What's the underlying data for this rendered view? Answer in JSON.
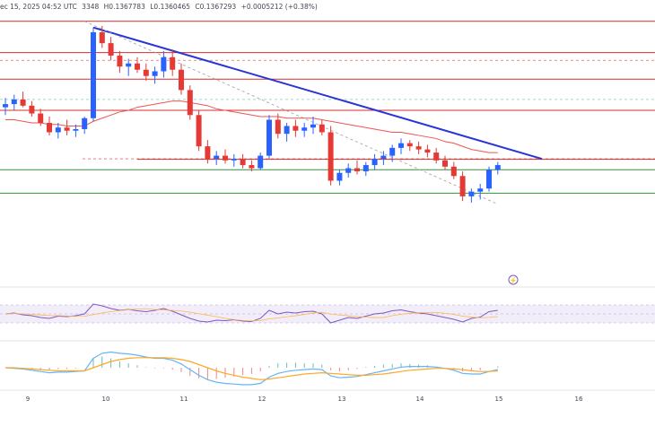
{
  "header": {
    "date_text": "ec 15, 2025 04:52 UTC",
    "open_text": "3348",
    "high_text": "H0.1367783",
    "low_text": "L0.1360465",
    "close_text": "C0.1367293",
    "change_text": "+0.0005212 (+0.38%)"
  },
  "colors": {
    "up": "#2962ff",
    "down": "#e53935",
    "trend": "#2935d6",
    "resistance": "#d32f2f",
    "support": "#388e3c",
    "ma": "#ef5350",
    "rsi": "#7e57c2",
    "macd": "#64b5f6",
    "signal": "#ffa726"
  },
  "chart_data": {
    "type": "candlestick",
    "x_ticks": [
      "9",
      "10",
      "11",
      "12",
      "13",
      "14",
      "15",
      "16"
    ],
    "price_scale": {
      "top": 0.146,
      "bottom": 0.1285
    },
    "candles": [
      [
        0.14,
        0.1406,
        0.1395,
        0.1402
      ],
      [
        0.1402,
        0.1408,
        0.1398,
        0.1405
      ],
      [
        0.1405,
        0.141,
        0.14,
        0.1401
      ],
      [
        0.1401,
        0.1404,
        0.1394,
        0.1396
      ],
      [
        0.1396,
        0.1399,
        0.1388,
        0.139
      ],
      [
        0.139,
        0.1394,
        0.1382,
        0.1384
      ],
      [
        0.1384,
        0.139,
        0.138,
        0.1387
      ],
      [
        0.1387,
        0.1392,
        0.1382,
        0.1385
      ],
      [
        0.1385,
        0.1389,
        0.1381,
        0.1386
      ],
      [
        0.1386,
        0.1394,
        0.1383,
        0.1393
      ],
      [
        0.1393,
        0.1451,
        0.1391,
        0.1448
      ],
      [
        0.1448,
        0.1452,
        0.1438,
        0.1441
      ],
      [
        0.1441,
        0.1445,
        0.143,
        0.1433
      ],
      [
        0.1433,
        0.1436,
        0.1422,
        0.1426
      ],
      [
        0.1426,
        0.1431,
        0.142,
        0.1428
      ],
      [
        0.1428,
        0.1432,
        0.1422,
        0.1424
      ],
      [
        0.1424,
        0.1428,
        0.1417,
        0.142
      ],
      [
        0.142,
        0.1426,
        0.1415,
        0.1423
      ],
      [
        0.1423,
        0.1436,
        0.1419,
        0.1432
      ],
      [
        0.1432,
        0.1437,
        0.142,
        0.1424
      ],
      [
        0.1424,
        0.1428,
        0.1408,
        0.1411
      ],
      [
        0.1411,
        0.1414,
        0.1392,
        0.1395
      ],
      [
        0.1395,
        0.1398,
        0.1372,
        0.1375
      ],
      [
        0.1375,
        0.1379,
        0.1364,
        0.1367
      ],
      [
        0.1367,
        0.1372,
        0.1363,
        0.1369
      ],
      [
        0.1369,
        0.1373,
        0.1364,
        0.1366
      ],
      [
        0.1366,
        0.137,
        0.1362,
        0.1367
      ],
      [
        0.1367,
        0.137,
        0.1361,
        0.1363
      ],
      [
        0.1363,
        0.1366,
        0.1359,
        0.1361
      ],
      [
        0.1361,
        0.1371,
        0.136,
        0.1369
      ],
      [
        0.1369,
        0.1395,
        0.1367,
        0.1392
      ],
      [
        0.1392,
        0.1396,
        0.138,
        0.1383
      ],
      [
        0.1383,
        0.139,
        0.1378,
        0.1388
      ],
      [
        0.1388,
        0.1392,
        0.1381,
        0.1385
      ],
      [
        0.1385,
        0.139,
        0.1381,
        0.1387
      ],
      [
        0.1387,
        0.1394,
        0.1383,
        0.1389
      ],
      [
        0.1389,
        0.1392,
        0.1382,
        0.1384
      ],
      [
        0.1384,
        0.1388,
        0.135,
        0.1353
      ],
      [
        0.1353,
        0.136,
        0.135,
        0.1358
      ],
      [
        0.1358,
        0.1364,
        0.1355,
        0.1361
      ],
      [
        0.1361,
        0.1366,
        0.1357,
        0.1359
      ],
      [
        0.1359,
        0.1365,
        0.1356,
        0.1363
      ],
      [
        0.1363,
        0.137,
        0.136,
        0.1367
      ],
      [
        0.1367,
        0.1372,
        0.1363,
        0.1369
      ],
      [
        0.1369,
        0.1376,
        0.1365,
        0.1374
      ],
      [
        0.1374,
        0.138,
        0.137,
        0.1377
      ],
      [
        0.1377,
        0.1379,
        0.1372,
        0.1375
      ],
      [
        0.1375,
        0.1378,
        0.137,
        0.1373
      ],
      [
        0.1373,
        0.1376,
        0.1368,
        0.1371
      ],
      [
        0.1371,
        0.1374,
        0.1364,
        0.1366
      ],
      [
        0.1366,
        0.1369,
        0.136,
        0.1362
      ],
      [
        0.1362,
        0.1365,
        0.1354,
        0.1356
      ],
      [
        0.1356,
        0.1359,
        0.134,
        0.1343
      ],
      [
        0.1343,
        0.1348,
        0.1339,
        0.1346
      ],
      [
        0.1346,
        0.1351,
        0.1341,
        0.1348
      ],
      [
        0.1348,
        0.1362,
        0.1346,
        0.136
      ],
      [
        0.136,
        0.1365,
        0.1357,
        0.1363
      ]
    ],
    "moving_average": [
      0.1392,
      0.1392,
      0.1391,
      0.139,
      0.139,
      0.1389,
      0.1389,
      0.1388,
      0.1388,
      0.1388,
      0.1391,
      0.1393,
      0.1395,
      0.1397,
      0.1398,
      0.14,
      0.1401,
      0.1402,
      0.1403,
      0.1404,
      0.1404,
      0.1403,
      0.1402,
      0.1401,
      0.1399,
      0.1398,
      0.1397,
      0.1396,
      0.1395,
      0.1394,
      0.1394,
      0.1394,
      0.1393,
      0.1393,
      0.1393,
      0.1393,
      0.1392,
      0.1391,
      0.139,
      0.1389,
      0.1388,
      0.1387,
      0.1386,
      0.1385,
      0.1384,
      0.1384,
      0.1383,
      0.1382,
      0.1381,
      0.138,
      0.1378,
      0.1377,
      0.1375,
      0.1373,
      0.1372,
      0.1371,
      0.1371
    ],
    "resistance_levels": [
      0.1455,
      0.1435,
      0.1418,
      0.1398
    ],
    "dashed_levels": [
      0.143,
      0.1405,
      0.1367
    ],
    "support_levels": [
      0.136,
      0.1345
    ],
    "rsi_values": [
      50,
      52,
      48,
      46,
      42,
      40,
      45,
      44,
      46,
      50,
      72,
      68,
      62,
      58,
      60,
      57,
      55,
      58,
      62,
      56,
      48,
      40,
      34,
      32,
      36,
      35,
      37,
      34,
      33,
      40,
      58,
      50,
      54,
      52,
      55,
      56,
      50,
      30,
      36,
      42,
      40,
      45,
      50,
      52,
      57,
      59,
      55,
      52,
      50,
      46,
      42,
      38,
      32,
      40,
      43,
      55,
      58
    ],
    "macd_values": [
      0,
      -0.1,
      -0.2,
      -0.4,
      -0.6,
      -0.8,
      -0.7,
      -0.7,
      -0.6,
      -0.5,
      1.5,
      2.3,
      2.5,
      2.3,
      2.2,
      2.0,
      1.7,
      1.5,
      1.5,
      1.2,
      0.6,
      -0.3,
      -1.2,
      -1.9,
      -2.3,
      -2.5,
      -2.6,
      -2.7,
      -2.7,
      -2.5,
      -1.5,
      -0.9,
      -0.6,
      -0.4,
      -0.3,
      -0.2,
      -0.3,
      -1.3,
      -1.6,
      -1.5,
      -1.4,
      -1.1,
      -0.8,
      -0.5,
      -0.2,
      0.1,
      0.2,
      0.2,
      0.2,
      0.1,
      -0.1,
      -0.4,
      -0.9,
      -1.0,
      -1.0,
      -0.6,
      -0.3
    ],
    "signal_values": [
      0,
      0,
      -0.1,
      -0.2,
      -0.3,
      -0.4,
      -0.5,
      -0.5,
      -0.5,
      -0.5,
      0,
      0.5,
      1.0,
      1.3,
      1.5,
      1.6,
      1.6,
      1.6,
      1.6,
      1.5,
      1.3,
      1.0,
      0.5,
      0,
      -0.5,
      -0.9,
      -1.2,
      -1.5,
      -1.7,
      -1.9,
      -1.8,
      -1.6,
      -1.4,
      -1.2,
      -1.0,
      -0.9,
      -0.8,
      -0.9,
      -1.0,
      -1.1,
      -1.2,
      -1.2,
      -1.1,
      -1.0,
      -0.8,
      -0.6,
      -0.4,
      -0.3,
      -0.2,
      -0.1,
      -0.1,
      -0.2,
      -0.3,
      -0.5,
      -0.6,
      -0.6,
      -0.5
    ]
  }
}
